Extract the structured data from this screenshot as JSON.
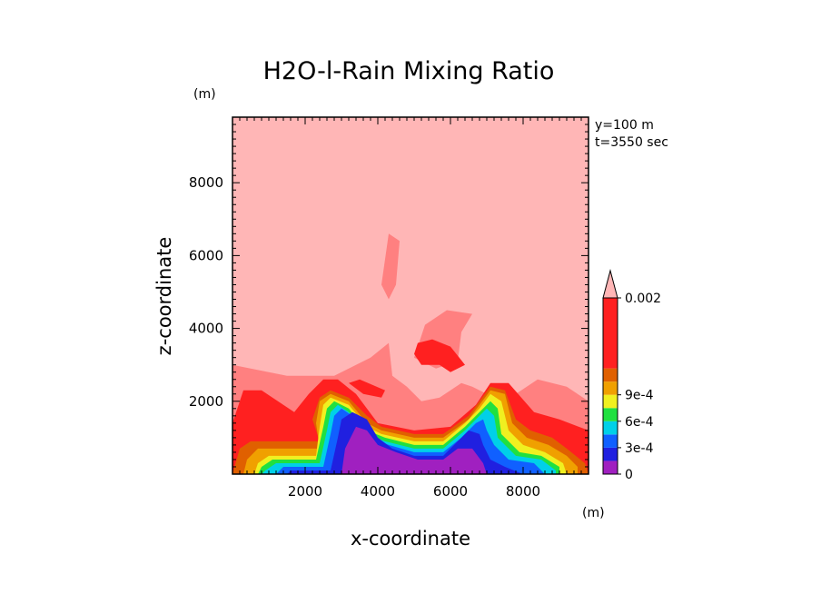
{
  "chart_data": {
    "type": "heatmap",
    "title": "H2O-l-Rain Mixing Ratio",
    "xlabel": "x-coordinate",
    "ylabel": "z-coordinate",
    "x_unit": "(m)",
    "y_unit": "(m)",
    "annotations": [
      "y=100 m",
      "t=3550 sec"
    ],
    "xlim": [
      0,
      9800
    ],
    "ylim": [
      0,
      9800
    ],
    "x_ticks": [
      2000,
      4000,
      6000,
      8000
    ],
    "y_ticks": [
      2000,
      4000,
      6000,
      8000
    ],
    "x_tick_labels": [
      "2000",
      "4000",
      "6000",
      "8000"
    ],
    "y_tick_labels": [
      "2000",
      "4000",
      "6000",
      "8000"
    ],
    "colorbar": {
      "labels": [
        "0.002",
        "9e-4",
        "6e-4",
        "3e-4",
        "0"
      ],
      "label_values": [
        0.002,
        0.0009,
        0.0006,
        0.0003,
        0
      ],
      "levels": [
        0,
        0.00015,
        0.0003,
        0.00045,
        0.0006,
        0.00075,
        0.0009,
        0.00105,
        0.0012,
        0.002
      ],
      "colors": [
        "#a020c0",
        "#2020e0",
        "#1060ff",
        "#00d0e8",
        "#20e040",
        "#f0f020",
        "#f0a000",
        "#e06000",
        "#ff2020",
        "#ff8080"
      ],
      "over_color": "#ffb6b6"
    },
    "background_color": "#ffb6b6",
    "regions": [
      {
        "level": "0.0012-0.002",
        "color": "#ff8080",
        "polygon": [
          [
            0,
            3000
          ],
          [
            1500,
            2700
          ],
          [
            2800,
            2700
          ],
          [
            3800,
            3200
          ],
          [
            4300,
            3600
          ],
          [
            4400,
            2700
          ],
          [
            4800,
            2400
          ],
          [
            5200,
            2000
          ],
          [
            5700,
            2100
          ],
          [
            6300,
            2500
          ],
          [
            6600,
            2400
          ],
          [
            7200,
            2100
          ],
          [
            7800,
            2200
          ],
          [
            8400,
            2600
          ],
          [
            9200,
            2400
          ],
          [
            9800,
            2000
          ],
          [
            9800,
            0
          ],
          [
            0,
            0
          ]
        ]
      },
      {
        "level": "0.0012-0.002",
        "color": "#ff8080",
        "polygon": [
          [
            4100,
            5200
          ],
          [
            4300,
            6600
          ],
          [
            4600,
            6400
          ],
          [
            4500,
            5200
          ],
          [
            4300,
            4800
          ]
        ]
      },
      {
        "level": "0.0012-0.002",
        "color": "#ff8080",
        "polygon": [
          [
            5000,
            3200
          ],
          [
            5300,
            4100
          ],
          [
            5900,
            4500
          ],
          [
            6600,
            4400
          ],
          [
            6300,
            3900
          ],
          [
            6200,
            3100
          ],
          [
            5600,
            2900
          ]
        ]
      },
      {
        "level": "0.00105-0.0012",
        "color": "#ff2020",
        "polygon": [
          [
            0,
            1400
          ],
          [
            300,
            2300
          ],
          [
            800,
            2300
          ],
          [
            1700,
            1700
          ],
          [
            2100,
            2200
          ],
          [
            2500,
            2600
          ],
          [
            2900,
            2600
          ],
          [
            3400,
            2200
          ],
          [
            4000,
            1400
          ],
          [
            5000,
            1200
          ],
          [
            6000,
            1300
          ],
          [
            6700,
            1900
          ],
          [
            7100,
            2500
          ],
          [
            7600,
            2500
          ],
          [
            8300,
            1700
          ],
          [
            9000,
            1500
          ],
          [
            9800,
            1200
          ],
          [
            9800,
            0
          ],
          [
            0,
            0
          ]
        ]
      },
      {
        "level": "0.00105-0.0012",
        "color": "#ff2020",
        "polygon": [
          [
            5000,
            3300
          ],
          [
            5100,
            3600
          ],
          [
            5500,
            3700
          ],
          [
            6000,
            3500
          ],
          [
            6400,
            3000
          ],
          [
            6000,
            2800
          ],
          [
            5700,
            3000
          ],
          [
            5200,
            3000
          ]
        ]
      },
      {
        "level": "0.00105-0.0012",
        "color": "#ff2020",
        "polygon": [
          [
            3200,
            2500
          ],
          [
            3500,
            2600
          ],
          [
            4200,
            2300
          ],
          [
            4100,
            2100
          ],
          [
            3600,
            2200
          ]
        ]
      },
      {
        "level": "0.0009-0.00105",
        "color": "#e06000",
        "polygon": [
          [
            200,
            700
          ],
          [
            500,
            900
          ],
          [
            1000,
            900
          ],
          [
            2400,
            900
          ],
          [
            2200,
            1500
          ],
          [
            2400,
            2100
          ],
          [
            2700,
            2300
          ],
          [
            3200,
            2100
          ],
          [
            3700,
            1600
          ],
          [
            4100,
            1300
          ],
          [
            5000,
            1100
          ],
          [
            5800,
            1100
          ],
          [
            6500,
            1600
          ],
          [
            6800,
            2000
          ],
          [
            7100,
            2400
          ],
          [
            7500,
            2300
          ],
          [
            7800,
            1500
          ],
          [
            8200,
            1200
          ],
          [
            8800,
            1000
          ],
          [
            9200,
            700
          ],
          [
            9700,
            300
          ],
          [
            9800,
            0
          ],
          [
            0,
            0
          ]
        ]
      },
      {
        "level": "0.00075-0.0009",
        "color": "#f0a000",
        "polygon": [
          [
            400,
            400
          ],
          [
            700,
            700
          ],
          [
            1300,
            700
          ],
          [
            2400,
            700
          ],
          [
            2300,
            1400
          ],
          [
            2400,
            2000
          ],
          [
            2700,
            2200
          ],
          [
            3200,
            2000
          ],
          [
            3700,
            1400
          ],
          [
            4100,
            1200
          ],
          [
            5000,
            1000
          ],
          [
            5800,
            1000
          ],
          [
            6500,
            1500
          ],
          [
            6800,
            1900
          ],
          [
            7100,
            2300
          ],
          [
            7500,
            2200
          ],
          [
            7700,
            1400
          ],
          [
            8100,
            1000
          ],
          [
            8700,
            800
          ],
          [
            9200,
            500
          ],
          [
            9500,
            200
          ],
          [
            9500,
            0
          ],
          [
            300,
            0
          ]
        ]
      },
      {
        "level": "0.0006-0.00075",
        "color": "#f0f020",
        "polygon": [
          [
            700,
            300
          ],
          [
            1000,
            500
          ],
          [
            2300,
            500
          ],
          [
            2400,
            1300
          ],
          [
            2500,
            1900
          ],
          [
            2700,
            2100
          ],
          [
            3200,
            1900
          ],
          [
            3700,
            1300
          ],
          [
            4100,
            1100
          ],
          [
            5000,
            900
          ],
          [
            5800,
            900
          ],
          [
            6400,
            1400
          ],
          [
            6800,
            1800
          ],
          [
            7100,
            2200
          ],
          [
            7400,
            2000
          ],
          [
            7600,
            1200
          ],
          [
            8000,
            800
          ],
          [
            8600,
            600
          ],
          [
            9100,
            300
          ],
          [
            9200,
            0
          ],
          [
            600,
            0
          ]
        ]
      },
      {
        "level": "0.00045-0.0006",
        "color": "#20e040",
        "polygon": [
          [
            800,
            200
          ],
          [
            1100,
            400
          ],
          [
            2300,
            400
          ],
          [
            2500,
            1300
          ],
          [
            2600,
            1800
          ],
          [
            2800,
            2000
          ],
          [
            3200,
            1800
          ],
          [
            3700,
            1200
          ],
          [
            4200,
            1000
          ],
          [
            5000,
            800
          ],
          [
            5800,
            800
          ],
          [
            6400,
            1300
          ],
          [
            6800,
            1700
          ],
          [
            7100,
            2000
          ],
          [
            7300,
            1800
          ],
          [
            7400,
            1100
          ],
          [
            7900,
            600
          ],
          [
            8500,
            500
          ],
          [
            9000,
            200
          ],
          [
            9000,
            0
          ],
          [
            700,
            0
          ]
        ]
      },
      {
        "level": "0.0003-0.00045",
        "color": "#00d0e8",
        "polygon": [
          [
            900,
            100
          ],
          [
            1200,
            300
          ],
          [
            2400,
            300
          ],
          [
            2600,
            1200
          ],
          [
            2700,
            1700
          ],
          [
            2900,
            1900
          ],
          [
            3200,
            1700
          ],
          [
            3700,
            1100
          ],
          [
            4200,
            900
          ],
          [
            5000,
            700
          ],
          [
            5800,
            700
          ],
          [
            6400,
            1200
          ],
          [
            6800,
            1600
          ],
          [
            7000,
            1800
          ],
          [
            7200,
            1600
          ],
          [
            7300,
            1000
          ],
          [
            7800,
            500
          ],
          [
            8500,
            400
          ],
          [
            8900,
            100
          ],
          [
            8900,
            0
          ],
          [
            800,
            0
          ]
        ]
      },
      {
        "level": "0.00015-0.0003",
        "color": "#1060ff",
        "polygon": [
          [
            1200,
            0
          ],
          [
            1400,
            200
          ],
          [
            2500,
            200
          ],
          [
            2700,
            1100
          ],
          [
            2800,
            1600
          ],
          [
            3000,
            1800
          ],
          [
            3300,
            1600
          ],
          [
            3800,
            1000
          ],
          [
            4300,
            800
          ],
          [
            5000,
            600
          ],
          [
            5800,
            600
          ],
          [
            6300,
            1000
          ],
          [
            6700,
            1400
          ],
          [
            6900,
            1500
          ],
          [
            7000,
            1200
          ],
          [
            7200,
            800
          ],
          [
            7600,
            400
          ],
          [
            8300,
            300
          ],
          [
            8600,
            0
          ]
        ]
      },
      {
        "level": "0-0.00015",
        "color": "#2020e0",
        "polygon": [
          [
            1500,
            0
          ],
          [
            1600,
            100
          ],
          [
            2700,
            100
          ],
          [
            2900,
            1000
          ],
          [
            3000,
            1500
          ],
          [
            3300,
            1700
          ],
          [
            3700,
            1500
          ],
          [
            4000,
            1000
          ],
          [
            4400,
            700
          ],
          [
            5000,
            500
          ],
          [
            5800,
            500
          ],
          [
            6200,
            900
          ],
          [
            6500,
            1200
          ],
          [
            6800,
            1100
          ],
          [
            6900,
            800
          ],
          [
            7100,
            400
          ],
          [
            7500,
            200
          ],
          [
            8000,
            0
          ]
        ]
      },
      {
        "level": "0-0.00015",
        "color": "#a020c0",
        "polygon": [
          [
            3000,
            0
          ],
          [
            3100,
            700
          ],
          [
            3400,
            1300
          ],
          [
            3700,
            1200
          ],
          [
            4000,
            800
          ],
          [
            4500,
            600
          ],
          [
            5100,
            400
          ],
          [
            5800,
            400
          ],
          [
            6200,
            700
          ],
          [
            6600,
            700
          ],
          [
            6900,
            300
          ],
          [
            7000,
            0
          ]
        ]
      }
    ]
  }
}
